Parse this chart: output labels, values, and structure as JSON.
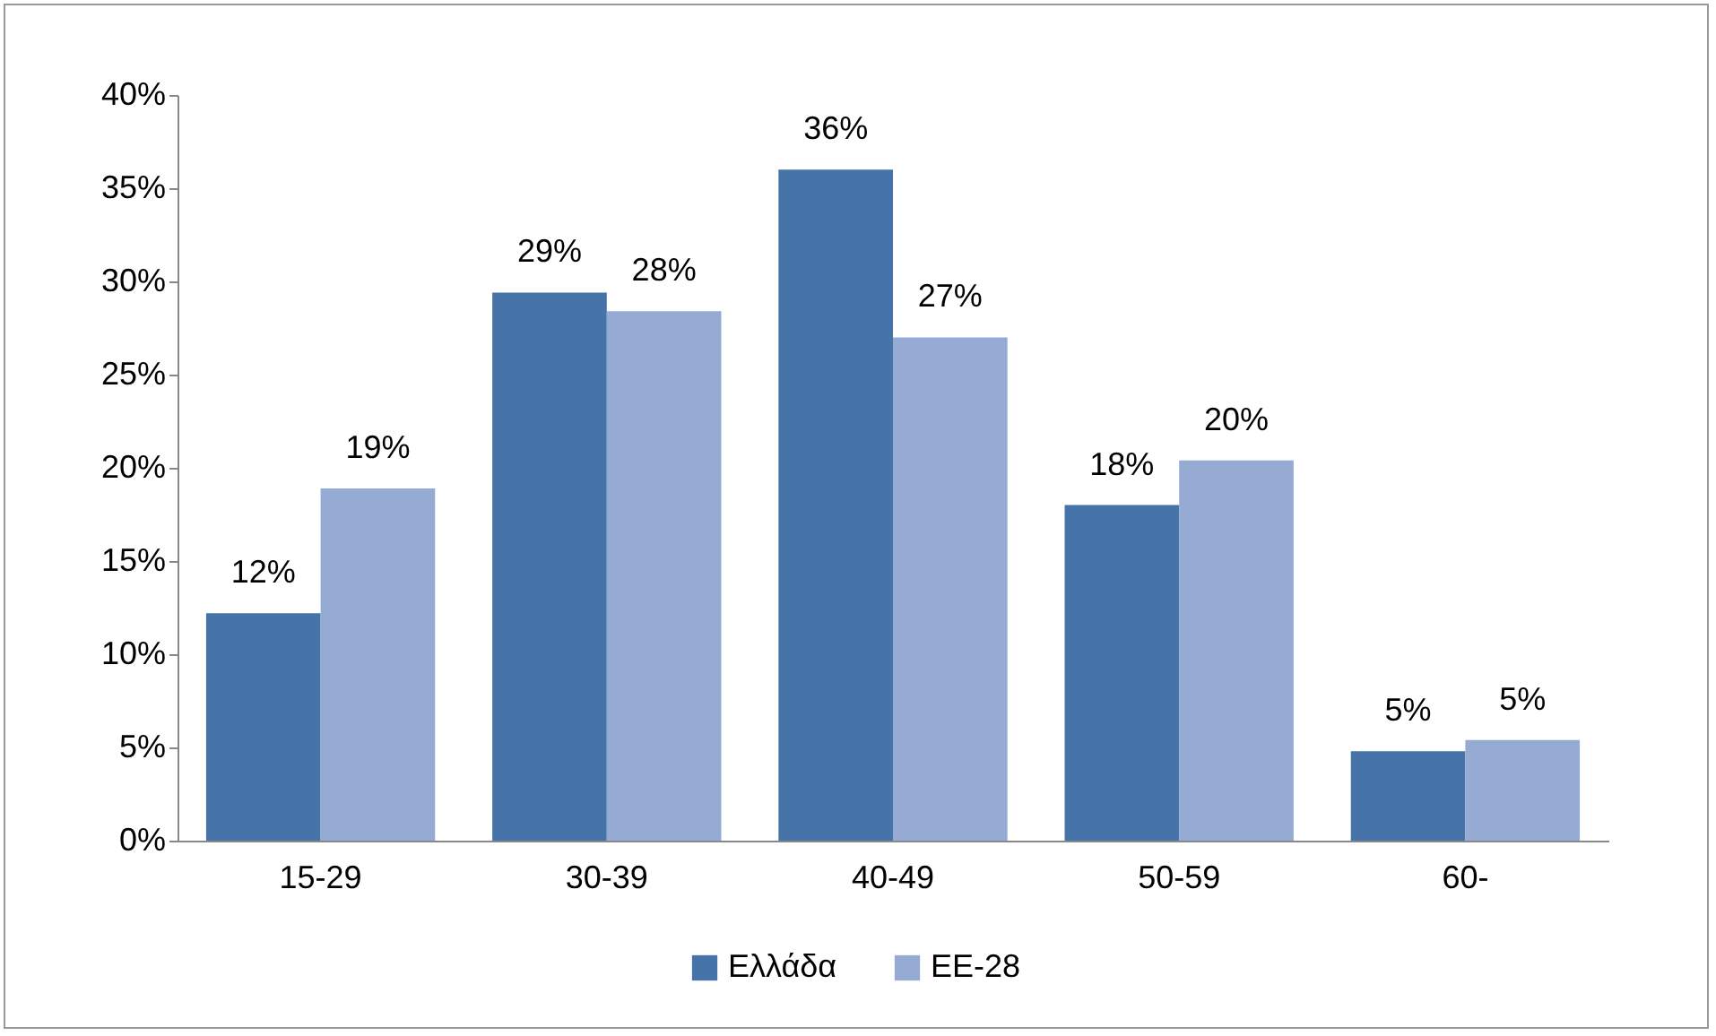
{
  "chart_data": {
    "type": "bar",
    "categories": [
      "15-29",
      "30-39",
      "40-49",
      "50-59",
      "60-"
    ],
    "series": [
      {
        "name": "Ελλάδα",
        "color": "#4674a9",
        "values": [
          12.2,
          29.4,
          36.0,
          18.0,
          4.8
        ],
        "value_labels": [
          "12%",
          "29%",
          "36%",
          "18%",
          "5%"
        ]
      },
      {
        "name": "ΕΕ-28",
        "color": "#95abd4",
        "values": [
          18.9,
          28.4,
          27.0,
          20.4,
          5.4
        ],
        "value_labels": [
          "19%",
          "28%",
          "27%",
          "20%",
          "5%"
        ]
      }
    ],
    "ylim": [
      0,
      40
    ],
    "yticks": [
      {
        "value": 0,
        "label": "0%"
      },
      {
        "value": 5,
        "label": "5%"
      },
      {
        "value": 10,
        "label": "10%"
      },
      {
        "value": 15,
        "label": "15%"
      },
      {
        "value": 20,
        "label": "20%"
      },
      {
        "value": 25,
        "label": "25%"
      },
      {
        "value": 30,
        "label": "30%"
      },
      {
        "value": 35,
        "label": "35%"
      },
      {
        "value": 40,
        "label": "40%"
      }
    ],
    "grid": false,
    "legend": "bottom"
  }
}
